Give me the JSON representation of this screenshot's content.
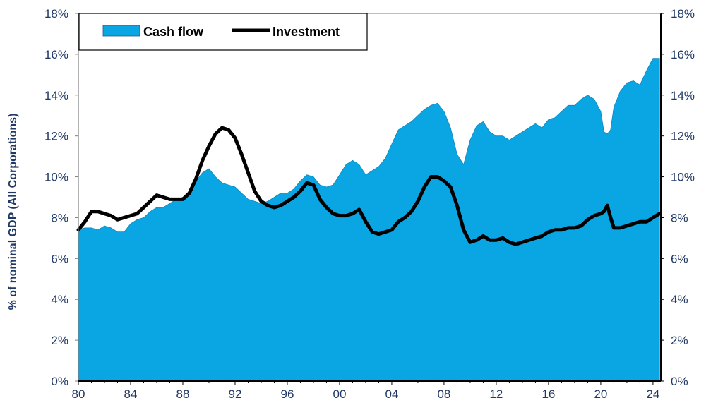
{
  "chart_data": {
    "type": "area",
    "title": "",
    "xlabel": "",
    "ylabel": "% of nominal GDP (All Corporations)",
    "xlim": [
      1980,
      2024.6
    ],
    "ylim": [
      0,
      18
    ],
    "x_ticks": [
      1980,
      1984,
      1988,
      1992,
      1996,
      2000,
      2004,
      2008,
      2012,
      2016,
      2020,
      2024
    ],
    "x_tick_labels": [
      "80",
      "84",
      "88",
      "92",
      "96",
      "00",
      "04",
      "08",
      "12",
      "16",
      "20",
      "24"
    ],
    "y_ticks": [
      0,
      2,
      4,
      6,
      8,
      10,
      12,
      14,
      16,
      18
    ],
    "y_tick_labels": [
      "0%",
      "2%",
      "4%",
      "6%",
      "8%",
      "10%",
      "12%",
      "14%",
      "16%",
      "18%"
    ],
    "legend": {
      "placement": "top-left",
      "border": true
    },
    "series": [
      {
        "name": "Cash flow",
        "kind": "area",
        "color": "#0aa6e4",
        "x": [
          1980.0,
          1980.5,
          1981.0,
          1981.5,
          1982.0,
          1982.5,
          1983.0,
          1983.5,
          1984.0,
          1984.5,
          1985.0,
          1985.5,
          1986.0,
          1986.5,
          1987.0,
          1987.5,
          1988.0,
          1988.5,
          1989.0,
          1989.5,
          1990.0,
          1990.5,
          1991.0,
          1991.5,
          1992.0,
          1992.5,
          1993.0,
          1993.5,
          1994.0,
          1994.5,
          1995.0,
          1995.5,
          1996.0,
          1996.5,
          1997.0,
          1997.5,
          1998.0,
          1998.5,
          1999.0,
          1999.5,
          2000.0,
          2000.5,
          2001.0,
          2001.5,
          2002.0,
          2002.5,
          2003.0,
          2003.5,
          2004.0,
          2004.5,
          2005.0,
          2005.5,
          2006.0,
          2006.5,
          2007.0,
          2007.5,
          2008.0,
          2008.5,
          2009.0,
          2009.5,
          2010.0,
          2010.5,
          2011.0,
          2011.5,
          2012.0,
          2012.5,
          2013.0,
          2013.5,
          2014.0,
          2014.5,
          2015.0,
          2015.5,
          2016.0,
          2016.5,
          2017.0,
          2017.5,
          2018.0,
          2018.5,
          2019.0,
          2019.5,
          2020.0,
          2020.25,
          2020.5,
          2020.75,
          2021.0,
          2021.5,
          2022.0,
          2022.5,
          2023.0,
          2023.5,
          2024.0,
          2024.5
        ],
        "values": [
          7.4,
          7.5,
          7.5,
          7.4,
          7.6,
          7.5,
          7.3,
          7.3,
          7.7,
          7.9,
          8.0,
          8.3,
          8.5,
          8.5,
          8.7,
          8.9,
          9.0,
          9.3,
          9.8,
          10.2,
          10.4,
          10.0,
          9.7,
          9.6,
          9.5,
          9.2,
          8.9,
          8.8,
          8.7,
          8.8,
          9.0,
          9.2,
          9.2,
          9.4,
          9.8,
          10.1,
          10.0,
          9.6,
          9.5,
          9.6,
          10.1,
          10.6,
          10.8,
          10.6,
          10.1,
          10.3,
          10.5,
          10.9,
          11.6,
          12.3,
          12.5,
          12.7,
          13.0,
          13.3,
          13.5,
          13.6,
          13.2,
          12.4,
          11.1,
          10.6,
          11.8,
          12.5,
          12.7,
          12.2,
          12.0,
          12.0,
          11.8,
          12.0,
          12.2,
          12.4,
          12.6,
          12.4,
          12.8,
          12.9,
          13.2,
          13.5,
          13.5,
          13.8,
          14.0,
          13.8,
          13.2,
          12.2,
          12.1,
          12.3,
          13.4,
          14.2,
          14.6,
          14.7,
          14.5,
          15.2,
          15.8,
          15.8
        ]
      },
      {
        "name": "Investment",
        "kind": "line",
        "color": "#000000",
        "x": [
          1980.0,
          1980.5,
          1981.0,
          1981.5,
          1982.0,
          1982.5,
          1983.0,
          1983.5,
          1984.0,
          1984.5,
          1985.0,
          1985.5,
          1986.0,
          1986.5,
          1987.0,
          1987.5,
          1988.0,
          1988.5,
          1989.0,
          1989.5,
          1990.0,
          1990.5,
          1991.0,
          1991.5,
          1992.0,
          1992.5,
          1993.0,
          1993.5,
          1994.0,
          1994.5,
          1995.0,
          1995.5,
          1996.0,
          1996.5,
          1997.0,
          1997.5,
          1998.0,
          1998.5,
          1999.0,
          1999.5,
          2000.0,
          2000.5,
          2001.0,
          2001.5,
          2002.0,
          2002.5,
          2003.0,
          2003.5,
          2004.0,
          2004.5,
          2005.0,
          2005.5,
          2006.0,
          2006.5,
          2007.0,
          2007.5,
          2008.0,
          2008.5,
          2009.0,
          2009.5,
          2010.0,
          2010.5,
          2011.0,
          2011.5,
          2012.0,
          2012.5,
          2013.0,
          2013.5,
          2014.0,
          2014.5,
          2015.0,
          2015.5,
          2016.0,
          2016.5,
          2017.0,
          2017.5,
          2018.0,
          2018.5,
          2019.0,
          2019.5,
          2020.0,
          2020.25,
          2020.5,
          2020.75,
          2021.0,
          2021.5,
          2022.0,
          2022.5,
          2023.0,
          2023.5,
          2024.0,
          2024.5
        ],
        "values": [
          7.4,
          7.8,
          8.3,
          8.3,
          8.2,
          8.1,
          7.9,
          8.0,
          8.1,
          8.2,
          8.5,
          8.8,
          9.1,
          9.0,
          8.9,
          8.9,
          8.9,
          9.2,
          9.9,
          10.8,
          11.5,
          12.1,
          12.4,
          12.3,
          11.9,
          11.1,
          10.2,
          9.3,
          8.8,
          8.6,
          8.5,
          8.6,
          8.8,
          9.0,
          9.3,
          9.7,
          9.6,
          8.9,
          8.5,
          8.2,
          8.1,
          8.1,
          8.2,
          8.4,
          7.8,
          7.3,
          7.2,
          7.3,
          7.4,
          7.8,
          8.0,
          8.3,
          8.8,
          9.5,
          10.0,
          10.0,
          9.8,
          9.5,
          8.6,
          7.4,
          6.8,
          6.9,
          7.1,
          6.9,
          6.9,
          7.0,
          6.8,
          6.7,
          6.8,
          6.9,
          7.0,
          7.1,
          7.3,
          7.4,
          7.4,
          7.5,
          7.5,
          7.6,
          7.9,
          8.1,
          8.2,
          8.3,
          8.6,
          8.0,
          7.5,
          7.5,
          7.6,
          7.7,
          7.8,
          7.8,
          8.0,
          8.2
        ]
      }
    ]
  }
}
